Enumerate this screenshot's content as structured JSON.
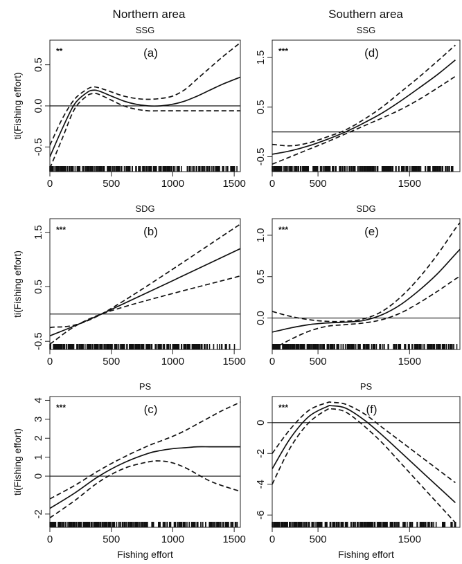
{
  "column_titles": [
    "Northern area",
    "Southern area"
  ],
  "chart_data": [
    {
      "id": "a",
      "type": "line",
      "area": "Northern area",
      "title": "SSG",
      "tag": "(a)",
      "significance": "**",
      "xlabel": "",
      "ylabel": "ti(Fishing effort)",
      "xlim": [
        0,
        1550
      ],
      "ylim": [
        -0.8,
        0.8
      ],
      "xticks": [
        0,
        500,
        1000,
        1500
      ],
      "yticks": [
        -0.5,
        0.0,
        0.5
      ],
      "ytick_labels": [
        "-0.5",
        "0.0",
        "0.5"
      ],
      "x": [
        0,
        100,
        200,
        300,
        350,
        400,
        500,
        600,
        700,
        800,
        900,
        1000,
        1100,
        1200,
        1300,
        1400,
        1550
      ],
      "series": [
        {
          "values": [
            -0.62,
            -0.28,
            0.02,
            0.16,
            0.19,
            0.18,
            0.12,
            0.06,
            0.02,
            0.0,
            0.0,
            0.02,
            0.06,
            0.12,
            0.19,
            0.26,
            0.35
          ],
          "style": "solid"
        },
        {
          "values": [
            -0.48,
            -0.16,
            0.08,
            0.2,
            0.23,
            0.22,
            0.17,
            0.12,
            0.09,
            0.08,
            0.09,
            0.12,
            0.2,
            0.33,
            0.46,
            0.59,
            0.77
          ],
          "style": "dashed"
        },
        {
          "values": [
            -0.76,
            -0.4,
            -0.04,
            0.12,
            0.15,
            0.14,
            0.07,
            0.0,
            -0.04,
            -0.06,
            -0.06,
            -0.06,
            -0.06,
            -0.06,
            -0.06,
            -0.06,
            -0.06
          ],
          "style": "dashed"
        }
      ]
    },
    {
      "id": "b",
      "type": "line",
      "area": "Northern area",
      "title": "SDG",
      "tag": "(b)",
      "significance": "***",
      "xlabel": "",
      "ylabel": "ti(Fishing effort)",
      "xlim": [
        0,
        1550
      ],
      "ylim": [
        -0.65,
        1.75
      ],
      "xticks": [
        0,
        500,
        1000,
        1500
      ],
      "yticks": [
        -0.5,
        0.5,
        1.5
      ],
      "ytick_labels": [
        "-0.5",
        "0.5",
        "1.5"
      ],
      "x": [
        0,
        420,
        1550
      ],
      "series": [
        {
          "values": [
            -0.4,
            0.0,
            1.2
          ],
          "style": "solid"
        },
        {
          "values": [
            -0.25,
            0.0,
            1.65
          ],
          "style": "dashed"
        },
        {
          "values": [
            -0.55,
            0.0,
            0.7
          ],
          "style": "dashed"
        }
      ]
    },
    {
      "id": "c",
      "type": "line",
      "area": "Northern area",
      "title": "PS",
      "tag": "(c)",
      "significance": "***",
      "xlabel": "Fishing effort",
      "ylabel": "ti(Fishing effort)",
      "xlim": [
        0,
        1550
      ],
      "ylim": [
        -2.7,
        4.2
      ],
      "xticks": [
        0,
        500,
        1000,
        1500
      ],
      "yticks": [
        -2,
        0,
        1,
        2,
        3,
        4
      ],
      "ytick_labels": [
        "-2",
        "0",
        "1",
        "2",
        "3",
        "4"
      ],
      "x": [
        0,
        200,
        400,
        600,
        800,
        900,
        1000,
        1100,
        1200,
        1300,
        1400,
        1550
      ],
      "series": [
        {
          "values": [
            -1.7,
            -0.9,
            0.0,
            0.7,
            1.2,
            1.35,
            1.45,
            1.5,
            1.55,
            1.55,
            1.55,
            1.55
          ],
          "style": "solid"
        },
        {
          "values": [
            -1.2,
            -0.5,
            0.3,
            1.0,
            1.6,
            1.85,
            2.1,
            2.4,
            2.75,
            3.1,
            3.45,
            3.9
          ],
          "style": "dashed"
        },
        {
          "values": [
            -2.2,
            -1.3,
            -0.3,
            0.4,
            0.75,
            0.8,
            0.7,
            0.45,
            0.1,
            -0.25,
            -0.5,
            -0.8
          ],
          "style": "dashed"
        }
      ]
    },
    {
      "id": "d",
      "type": "line",
      "area": "Southern area",
      "title": "SSG",
      "tag": "(d)",
      "significance": "***",
      "xlabel": "",
      "ylabel": "",
      "xlim": [
        0,
        2050
      ],
      "ylim": [
        -0.8,
        1.85
      ],
      "xticks": [
        0,
        500,
        1500
      ],
      "yticks": [
        -0.5,
        0.5,
        1.5
      ],
      "ytick_labels": [
        "-0.5",
        "0.5",
        "1.5"
      ],
      "x": [
        0,
        200,
        400,
        600,
        800,
        1000,
        1200,
        1400,
        1600,
        1800,
        2000
      ],
      "series": [
        {
          "values": [
            -0.45,
            -0.38,
            -0.28,
            -0.15,
            0.0,
            0.18,
            0.38,
            0.62,
            0.88,
            1.15,
            1.45
          ],
          "style": "solid"
        },
        {
          "values": [
            -0.25,
            -0.28,
            -0.22,
            -0.1,
            0.04,
            0.25,
            0.5,
            0.8,
            1.1,
            1.42,
            1.75
          ],
          "style": "dashed"
        },
        {
          "values": [
            -0.65,
            -0.5,
            -0.35,
            -0.2,
            -0.04,
            0.12,
            0.28,
            0.45,
            0.65,
            0.88,
            1.12
          ],
          "style": "dashed"
        }
      ]
    },
    {
      "id": "e",
      "type": "line",
      "area": "Southern area",
      "title": "SDG",
      "tag": "(e)",
      "significance": "***",
      "xlabel": "",
      "ylabel": "",
      "xlim": [
        0,
        2050
      ],
      "ylim": [
        -0.38,
        1.2
      ],
      "xticks": [
        0,
        500,
        1500
      ],
      "yticks": [
        0.0,
        0.5,
        1.0
      ],
      "ytick_labels": [
        "0.0",
        "0.5",
        "1.0"
      ],
      "x": [
        0,
        200,
        400,
        600,
        800,
        1000,
        1200,
        1400,
        1600,
        1800,
        2000,
        2050
      ],
      "series": [
        {
          "values": [
            -0.17,
            -0.12,
            -0.08,
            -0.06,
            -0.05,
            -0.03,
            0.04,
            0.16,
            0.33,
            0.53,
            0.77,
            0.83
          ],
          "style": "solid"
        },
        {
          "values": [
            0.08,
            0.02,
            -0.02,
            -0.04,
            -0.04,
            -0.01,
            0.08,
            0.25,
            0.48,
            0.76,
            1.08,
            1.15
          ],
          "style": "dashed"
        },
        {
          "values": [
            -0.38,
            -0.26,
            -0.16,
            -0.1,
            -0.08,
            -0.06,
            -0.02,
            0.06,
            0.18,
            0.32,
            0.47,
            0.5
          ],
          "style": "dashed"
        }
      ]
    },
    {
      "id": "f",
      "type": "line",
      "area": "Southern area",
      "title": "PS",
      "tag": "(f)",
      "significance": "***",
      "xlabel": "Fishing effort",
      "ylabel": "",
      "xlim": [
        0,
        2050
      ],
      "ylim": [
        -6.8,
        1.7
      ],
      "xticks": [
        0,
        500,
        1500
      ],
      "yticks": [
        -6,
        -4,
        -2,
        0
      ],
      "ytick_labels": [
        "-6",
        "-4",
        "-2",
        "0"
      ],
      "x": [
        0,
        200,
        400,
        600,
        650,
        800,
        1000,
        1200,
        1400,
        1600,
        1800,
        2000
      ],
      "series": [
        {
          "values": [
            -3.0,
            -1.0,
            0.4,
            1.05,
            1.1,
            0.95,
            0.2,
            -0.8,
            -1.9,
            -3.0,
            -4.1,
            -5.2
          ],
          "style": "solid"
        },
        {
          "values": [
            -2.0,
            -0.4,
            0.8,
            1.3,
            1.32,
            1.2,
            0.6,
            -0.3,
            -1.2,
            -2.1,
            -3.0,
            -3.9
          ],
          "style": "dashed"
        },
        {
          "values": [
            -4.0,
            -1.6,
            0.0,
            0.85,
            0.9,
            0.7,
            -0.2,
            -1.3,
            -2.6,
            -3.9,
            -5.2,
            -6.5
          ],
          "style": "dashed"
        }
      ]
    }
  ]
}
